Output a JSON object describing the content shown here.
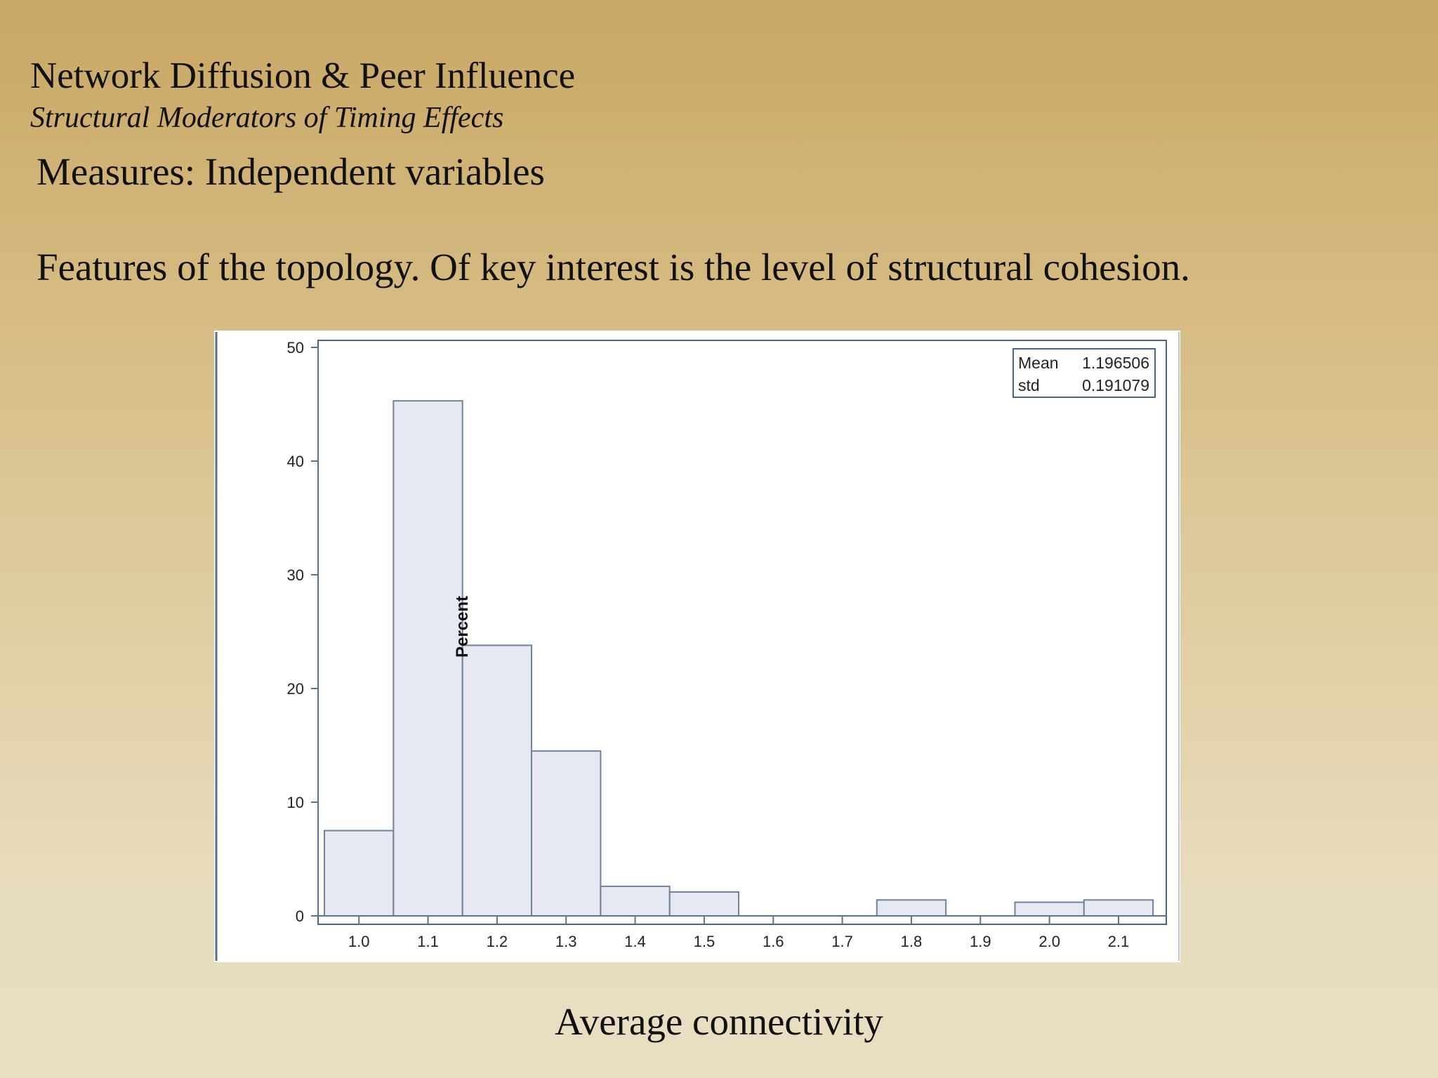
{
  "slide": {
    "title": "Network Diffusion & Peer Influence",
    "subtitle": "Structural Moderators of Timing Effects",
    "heading": "Measures: Independent variables",
    "body": "Features of the topology.  Of key interest is the level of structural cohesion.",
    "caption": "Average connectivity"
  },
  "chart_data": {
    "type": "bar",
    "subtype": "histogram",
    "ylabel": "Percent",
    "xlabel": "Average connectivity",
    "ylim": [
      0,
      50
    ],
    "yticks": [
      0,
      10,
      20,
      30,
      40,
      50
    ],
    "xlim": [
      0.95,
      2.16
    ],
    "xticks": [
      "1.0",
      "1.1",
      "1.2",
      "1.3",
      "1.4",
      "1.5",
      "1.6",
      "1.7",
      "1.8",
      "1.9",
      "2.0",
      "2.1"
    ],
    "bins": [
      {
        "start": 0.95,
        "end": 1.05,
        "value": 7.5
      },
      {
        "start": 1.05,
        "end": 1.15,
        "value": 45.3
      },
      {
        "start": 1.15,
        "end": 1.25,
        "value": 23.8
      },
      {
        "start": 1.25,
        "end": 1.35,
        "value": 14.5
      },
      {
        "start": 1.35,
        "end": 1.45,
        "value": 2.6
      },
      {
        "start": 1.45,
        "end": 1.55,
        "value": 2.1
      },
      {
        "start": 1.55,
        "end": 1.65,
        "value": 0
      },
      {
        "start": 1.65,
        "end": 1.75,
        "value": 0
      },
      {
        "start": 1.75,
        "end": 1.85,
        "value": 1.4
      },
      {
        "start": 1.85,
        "end": 1.95,
        "value": 0
      },
      {
        "start": 1.95,
        "end": 2.05,
        "value": 1.2
      },
      {
        "start": 2.05,
        "end": 2.15,
        "value": 1.4
      }
    ],
    "stats": [
      {
        "label": "Mean",
        "value": "1.196506"
      },
      {
        "label": "std",
        "value": "0.191079"
      }
    ],
    "legend_position": "top-right",
    "grid": false,
    "colors": {
      "bar_fill": "#e6e9f1",
      "bar_stroke": "#6f849c",
      "axis": "#5a7390",
      "frame": "#4a6582"
    }
  }
}
